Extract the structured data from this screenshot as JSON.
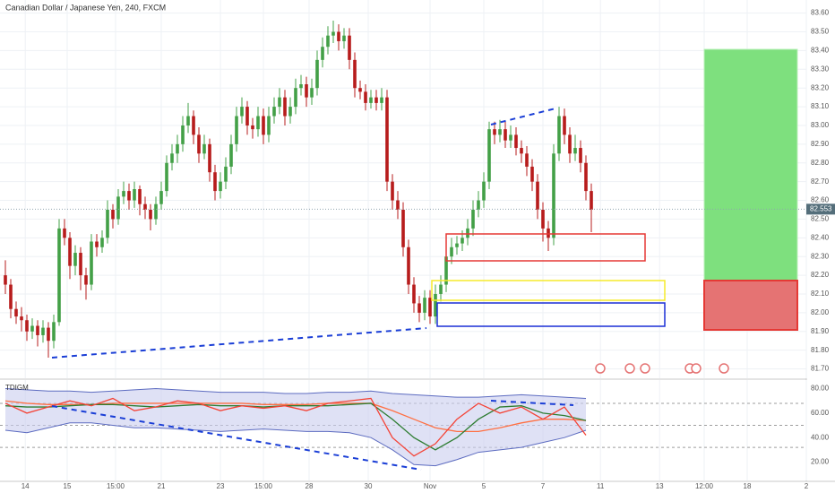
{
  "chart_data": [
    {
      "type": "candlestick",
      "title": "Canadian Dollar / Japanese Yen, 240, FXCM",
      "up_color": "#43a047",
      "down_color": "#b71c1c",
      "grid": true,
      "xlim": [
        -1,
        149
      ],
      "ylim": [
        81.65,
        83.67
      ],
      "xticks": [
        {
          "value": 3.7,
          "label": "14"
        },
        {
          "value": 11.5,
          "label": "15"
        },
        {
          "value": 20.5,
          "label": "15:00"
        },
        {
          "value": 29,
          "label": "21"
        },
        {
          "value": 40,
          "label": "23"
        },
        {
          "value": 48,
          "label": "15:00"
        },
        {
          "value": 56.5,
          "label": "28"
        },
        {
          "value": 67.5,
          "label": "30"
        },
        {
          "value": 79,
          "label": "Nov"
        },
        {
          "value": 89,
          "label": "5"
        },
        {
          "value": 100,
          "label": "7"
        },
        {
          "value": 110.7,
          "label": "11"
        },
        {
          "value": 121.7,
          "label": "13"
        },
        {
          "value": 130,
          "label": "12:00"
        },
        {
          "value": 138,
          "label": "18"
        },
        {
          "value": 149,
          "label": "2"
        }
      ],
      "yticks": [
        {
          "value": 81.7,
          "label": "81.70"
        },
        {
          "value": 81.8,
          "label": "81.80"
        },
        {
          "value": 81.9,
          "label": "81.90"
        },
        {
          "value": 82.0,
          "label": "82.00"
        },
        {
          "value": 82.1,
          "label": "82.10"
        },
        {
          "value": 82.2,
          "label": "82.20"
        },
        {
          "value": 82.3,
          "label": "82.30"
        },
        {
          "value": 82.4,
          "label": "82.40"
        },
        {
          "value": 82.5,
          "label": "82.50"
        },
        {
          "value": 82.6,
          "label": "82.60"
        },
        {
          "value": 82.7,
          "label": "82.70"
        },
        {
          "value": 82.8,
          "label": "82.80"
        },
        {
          "value": 82.9,
          "label": "82.90"
        },
        {
          "value": 83.0,
          "label": "83.00"
        },
        {
          "value": 83.1,
          "label": "83.10"
        },
        {
          "value": 83.2,
          "label": "83.20"
        },
        {
          "value": 83.3,
          "label": "83.30"
        },
        {
          "value": 83.4,
          "label": "83.40"
        },
        {
          "value": 83.5,
          "label": "83.50"
        },
        {
          "value": 83.6,
          "label": "83.60"
        }
      ],
      "last_price": 82.553,
      "ohlc": [
        [
          82.2,
          82.28,
          82.1,
          82.15
        ],
        [
          82.15,
          82.18,
          81.97,
          82.02
        ],
        [
          82.02,
          82.06,
          81.94,
          81.98
        ],
        [
          81.98,
          82.03,
          81.9,
          81.96
        ],
        [
          81.96,
          81.99,
          81.85,
          81.9
        ],
        [
          81.9,
          81.97,
          81.86,
          81.93
        ],
        [
          81.93,
          81.96,
          81.82,
          81.88
        ],
        [
          81.88,
          81.96,
          81.84,
          81.92
        ],
        [
          81.92,
          81.95,
          81.76,
          81.85
        ],
        [
          81.85,
          81.99,
          81.81,
          81.95
        ],
        [
          81.95,
          82.5,
          81.93,
          82.45
        ],
        [
          82.45,
          82.5,
          82.36,
          82.4
        ],
        [
          82.4,
          82.43,
          82.18,
          82.25
        ],
        [
          82.25,
          82.36,
          82.2,
          82.32
        ],
        [
          82.32,
          82.35,
          82.12,
          82.2
        ],
        [
          82.2,
          82.24,
          82.07,
          82.15
        ],
        [
          82.15,
          82.42,
          82.12,
          82.38
        ],
        [
          82.38,
          82.42,
          82.3,
          82.35
        ],
        [
          82.35,
          82.44,
          82.32,
          82.4
        ],
        [
          82.4,
          82.6,
          82.37,
          82.55
        ],
        [
          82.55,
          82.58,
          82.45,
          82.5
        ],
        [
          82.5,
          82.66,
          82.47,
          82.62
        ],
        [
          82.62,
          82.7,
          82.58,
          82.65
        ],
        [
          82.65,
          82.69,
          82.55,
          82.6
        ],
        [
          82.6,
          82.7,
          82.56,
          82.66
        ],
        [
          82.66,
          82.68,
          82.52,
          82.58
        ],
        [
          82.58,
          82.62,
          82.5,
          82.55
        ],
        [
          82.55,
          82.58,
          82.44,
          82.5
        ],
        [
          82.5,
          82.62,
          82.47,
          82.58
        ],
        [
          82.58,
          82.7,
          82.55,
          82.65
        ],
        [
          82.65,
          82.84,
          82.62,
          82.8
        ],
        [
          82.8,
          82.9,
          82.76,
          82.85
        ],
        [
          82.85,
          82.95,
          82.8,
          82.9
        ],
        [
          82.9,
          83.05,
          82.86,
          83.0
        ],
        [
          83.0,
          83.12,
          82.96,
          83.05
        ],
        [
          83.05,
          83.08,
          82.9,
          82.95
        ],
        [
          82.95,
          82.99,
          82.8,
          82.85
        ],
        [
          82.85,
          82.95,
          82.82,
          82.9
        ],
        [
          82.9,
          82.93,
          82.7,
          82.75
        ],
        [
          82.75,
          82.79,
          82.6,
          82.65
        ],
        [
          82.65,
          82.75,
          82.61,
          82.7
        ],
        [
          82.7,
          82.83,
          82.66,
          82.78
        ],
        [
          82.78,
          82.95,
          82.74,
          82.9
        ],
        [
          82.9,
          83.1,
          82.86,
          83.05
        ],
        [
          83.05,
          83.15,
          83.01,
          83.1
        ],
        [
          83.1,
          83.13,
          82.95,
          83.0
        ],
        [
          83.0,
          83.04,
          82.93,
          82.98
        ],
        [
          82.98,
          83.1,
          82.94,
          83.05
        ],
        [
          83.05,
          83.09,
          82.9,
          82.95
        ],
        [
          82.95,
          83.1,
          82.91,
          83.05
        ],
        [
          83.05,
          83.15,
          83.01,
          83.1
        ],
        [
          83.1,
          83.2,
          83.06,
          83.15
        ],
        [
          83.15,
          83.19,
          83.0,
          83.05
        ],
        [
          83.05,
          83.15,
          83.01,
          83.1
        ],
        [
          83.1,
          83.25,
          83.06,
          83.2
        ],
        [
          83.2,
          83.27,
          83.16,
          83.22
        ],
        [
          83.22,
          83.26,
          83.1,
          83.15
        ],
        [
          83.15,
          83.25,
          83.11,
          83.2
        ],
        [
          83.2,
          83.4,
          83.16,
          83.35
        ],
        [
          83.35,
          83.47,
          83.31,
          83.42
        ],
        [
          83.42,
          83.53,
          83.38,
          83.48
        ],
        [
          83.48,
          83.56,
          83.44,
          83.5
        ],
        [
          83.5,
          83.54,
          83.4,
          83.45
        ],
        [
          83.45,
          83.52,
          83.41,
          83.48
        ],
        [
          83.48,
          83.52,
          83.3,
          83.35
        ],
        [
          83.35,
          83.39,
          83.15,
          83.2
        ],
        [
          83.2,
          83.24,
          83.14,
          83.18
        ],
        [
          83.18,
          83.22,
          83.08,
          83.12
        ],
        [
          83.12,
          83.19,
          83.09,
          83.15
        ],
        [
          83.15,
          83.19,
          83.08,
          83.12
        ],
        [
          83.12,
          83.2,
          83.08,
          83.15
        ],
        [
          83.15,
          83.19,
          82.65,
          82.7
        ],
        [
          82.7,
          82.74,
          82.55,
          82.6
        ],
        [
          82.6,
          82.65,
          82.5,
          82.55
        ],
        [
          82.55,
          82.59,
          82.3,
          82.35
        ],
        [
          82.35,
          82.39,
          82.1,
          82.15
        ],
        [
          82.15,
          82.19,
          82.0,
          82.05
        ],
        [
          82.05,
          82.09,
          81.95,
          82.0
        ],
        [
          82.0,
          82.12,
          81.96,
          82.08
        ],
        [
          82.08,
          82.12,
          81.94,
          81.98
        ],
        [
          81.98,
          82.15,
          81.94,
          82.1
        ],
        [
          82.1,
          82.2,
          82.06,
          82.15
        ],
        [
          82.15,
          82.34,
          82.11,
          82.3
        ],
        [
          82.3,
          82.4,
          82.26,
          82.35
        ],
        [
          82.35,
          82.41,
          82.31,
          82.37
        ],
        [
          82.37,
          82.44,
          82.33,
          82.4
        ],
        [
          82.4,
          82.5,
          82.36,
          82.45
        ],
        [
          82.45,
          82.6,
          82.41,
          82.55
        ],
        [
          82.55,
          82.65,
          82.51,
          82.6
        ],
        [
          82.6,
          82.75,
          82.56,
          82.7
        ],
        [
          82.7,
          83.02,
          82.66,
          82.98
        ],
        [
          82.98,
          83.02,
          82.9,
          82.95
        ],
        [
          82.95,
          83.03,
          82.91,
          82.98
        ],
        [
          82.98,
          83.02,
          82.88,
          82.92
        ],
        [
          82.92,
          83.0,
          82.88,
          82.95
        ],
        [
          82.95,
          82.99,
          82.84,
          82.88
        ],
        [
          82.88,
          82.92,
          82.8,
          82.85
        ],
        [
          82.85,
          82.89,
          82.73,
          82.78
        ],
        [
          82.78,
          82.82,
          82.65,
          82.7
        ],
        [
          82.7,
          82.74,
          82.5,
          82.55
        ],
        [
          82.55,
          82.59,
          82.38,
          82.45
        ],
        [
          82.45,
          82.49,
          82.33,
          82.4
        ],
        [
          82.4,
          82.9,
          82.36,
          82.85
        ],
        [
          82.85,
          83.1,
          82.81,
          83.05
        ],
        [
          83.05,
          83.09,
          82.9,
          82.95
        ],
        [
          82.95,
          82.99,
          82.8,
          82.85
        ],
        [
          82.85,
          82.95,
          82.81,
          82.88
        ],
        [
          82.88,
          82.92,
          82.75,
          82.8
        ],
        [
          82.8,
          82.84,
          82.6,
          82.65
        ],
        [
          82.65,
          82.69,
          82.43,
          82.55
        ]
      ]
    },
    {
      "type": "line",
      "title": "TDIGM",
      "ylim": [
        5,
        87
      ],
      "band_color": "#c9cdef",
      "yticks": [
        {
          "value": 20,
          "label": "20.00"
        },
        {
          "value": 40,
          "label": "40.00"
        },
        {
          "value": 60,
          "label": "60.00"
        },
        {
          "value": 80,
          "label": "80.00"
        }
      ],
      "levels": [
        68,
        50,
        32
      ],
      "x": [
        0,
        4,
        8,
        12,
        16,
        20,
        24,
        28,
        32,
        36,
        40,
        44,
        48,
        52,
        56,
        60,
        64,
        68,
        72,
        76,
        80,
        84,
        88,
        92,
        96,
        100,
        104,
        108
      ],
      "series": [
        {
          "color": "#5c6bc0",
          "values": [
            80,
            79,
            78,
            78,
            77,
            78,
            79,
            80,
            79,
            78,
            77,
            77,
            77,
            76,
            76,
            77,
            77,
            78,
            76,
            75,
            74,
            73,
            73,
            74,
            75,
            74,
            73,
            72
          ]
        },
        {
          "color": "#5c6bc0",
          "values": [
            46,
            44,
            48,
            52,
            52,
            50,
            48,
            48,
            47,
            46,
            45,
            46,
            47,
            46,
            45,
            45,
            44,
            40,
            30,
            18,
            17,
            22,
            28,
            30,
            32,
            36,
            40,
            46
          ]
        },
        {
          "color": "#ff7043",
          "values": [
            70,
            68,
            67,
            67,
            67,
            68,
            68,
            68,
            68,
            68,
            68,
            68,
            67,
            67,
            67,
            68,
            68,
            68,
            62,
            55,
            48,
            45,
            45,
            48,
            52,
            55,
            55,
            54
          ]
        },
        {
          "color": "#2e7d32",
          "values": [
            66,
            65,
            65,
            66,
            67,
            67,
            66,
            65,
            66,
            67,
            66,
            66,
            65,
            66,
            66,
            66,
            67,
            68,
            55,
            40,
            30,
            40,
            55,
            65,
            66,
            60,
            58,
            54
          ]
        },
        {
          "color": "#f44336",
          "values": [
            68,
            60,
            65,
            70,
            66,
            72,
            62,
            65,
            70,
            68,
            62,
            66,
            64,
            66,
            62,
            68,
            70,
            72,
            40,
            25,
            35,
            55,
            68,
            60,
            65,
            55,
            65,
            42
          ]
        }
      ]
    }
  ]
}
